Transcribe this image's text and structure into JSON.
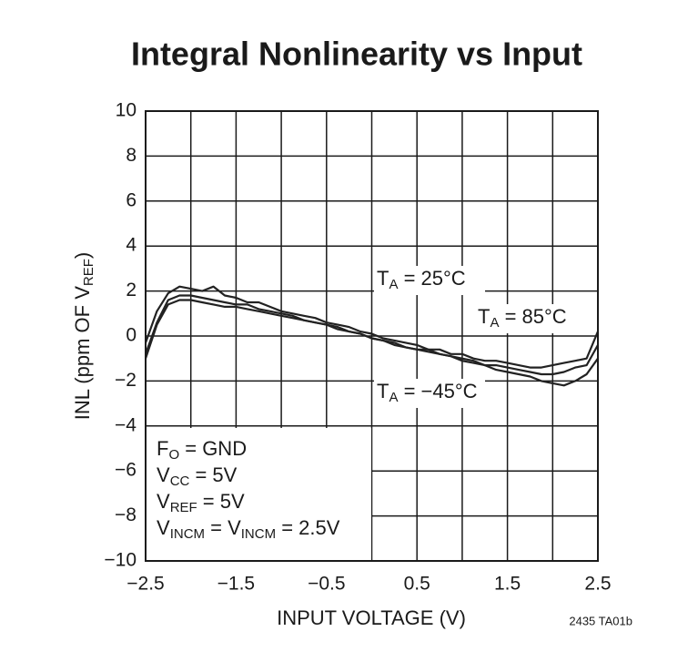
{
  "chart_data": {
    "type": "line",
    "title": "Integral Nonlinearity vs Input",
    "xlabel": "INPUT VOLTAGE (V)",
    "ylabel": [
      "INL (ppm OF V",
      "REF",
      ")"
    ],
    "footnote": "2435 TA01b",
    "xlim": [
      -2.5,
      2.5
    ],
    "ylim": [
      -10,
      10
    ],
    "xticks": [
      {
        "value": -2.5,
        "label": "−2.5"
      },
      {
        "value": -1.5,
        "label": "−1.5"
      },
      {
        "value": -0.5,
        "label": "−0.5"
      },
      0.5,
      1.5,
      2.5
    ],
    "xminor": [
      -2,
      -1,
      0,
      1,
      2
    ],
    "yticks": [
      10,
      8,
      6,
      4,
      2,
      0,
      {
        "value": -2,
        "label": "−2"
      },
      {
        "value": -4,
        "label": "−4"
      },
      {
        "value": -6,
        "label": "−6"
      },
      {
        "value": -8,
        "label": "−8"
      },
      {
        "value": -10,
        "label": "−10"
      }
    ],
    "grid": true,
    "conditions": [
      [
        "F",
        "O",
        " = GND"
      ],
      [
        "V",
        "CC",
        " = 5V"
      ],
      [
        "V",
        "REF",
        " = 5V"
      ],
      [
        "V",
        "INCM",
        " = V",
        "INCM",
        " = 2.5V"
      ]
    ],
    "x": [
      -2.5,
      -2.375,
      -2.25,
      -2.125,
      -2,
      -1.875,
      -1.75,
      -1.625,
      -1.5,
      -1.375,
      -1.25,
      -1.125,
      -1,
      -0.875,
      -0.75,
      -0.625,
      -0.5,
      -0.375,
      -0.25,
      -0.125,
      0,
      0.125,
      0.25,
      0.375,
      0.5,
      0.625,
      0.75,
      0.875,
      1,
      1.125,
      1.25,
      1.375,
      1.5,
      1.625,
      1.75,
      1.875,
      2,
      2.125,
      2.25,
      2.375,
      2.5
    ],
    "series": [
      {
        "label": [
          "T",
          "A",
          " = 25°C"
        ],
        "color": "#222222",
        "values": [
          -0.3,
          1.1,
          1.9,
          2.2,
          2.1,
          2.0,
          2.2,
          1.8,
          1.7,
          1.5,
          1.5,
          1.3,
          1.1,
          1.0,
          0.9,
          0.8,
          0.6,
          0.5,
          0.4,
          0.2,
          0.1,
          -0.1,
          -0.2,
          -0.3,
          -0.4,
          -0.6,
          -0.6,
          -0.8,
          -0.8,
          -1.0,
          -1.1,
          -1.1,
          -1.2,
          -1.3,
          -1.4,
          -1.4,
          -1.3,
          -1.2,
          -1.1,
          -1.0,
          0.2
        ]
      },
      {
        "label": [
          "T",
          "A",
          " = 85°C"
        ],
        "color": "#222222",
        "values": [
          -0.8,
          0.6,
          1.6,
          1.8,
          1.8,
          1.7,
          1.6,
          1.5,
          1.4,
          1.4,
          1.2,
          1.1,
          1.0,
          0.9,
          0.7,
          0.6,
          0.5,
          0.4,
          0.2,
          0.1,
          -0.1,
          -0.2,
          -0.3,
          -0.5,
          -0.6,
          -0.6,
          -0.8,
          -0.9,
          -1.0,
          -1.1,
          -1.3,
          -1.3,
          -1.4,
          -1.5,
          -1.6,
          -1.7,
          -1.7,
          -1.6,
          -1.4,
          -1.3,
          -0.4
        ]
      },
      {
        "label": [
          "T",
          "A",
          " = −45°C"
        ],
        "color": "#222222",
        "values": [
          -1.0,
          0.5,
          1.4,
          1.6,
          1.6,
          1.5,
          1.4,
          1.3,
          1.3,
          1.2,
          1.1,
          1.0,
          0.9,
          0.8,
          0.7,
          0.6,
          0.5,
          0.3,
          0.2,
          0.1,
          -0.1,
          -0.2,
          -0.4,
          -0.5,
          -0.6,
          -0.7,
          -0.8,
          -0.9,
          -1.1,
          -1.2,
          -1.3,
          -1.5,
          -1.6,
          -1.7,
          -1.8,
          -2.0,
          -2.1,
          -2.2,
          -2.0,
          -1.7,
          -1.0
        ]
      }
    ]
  }
}
